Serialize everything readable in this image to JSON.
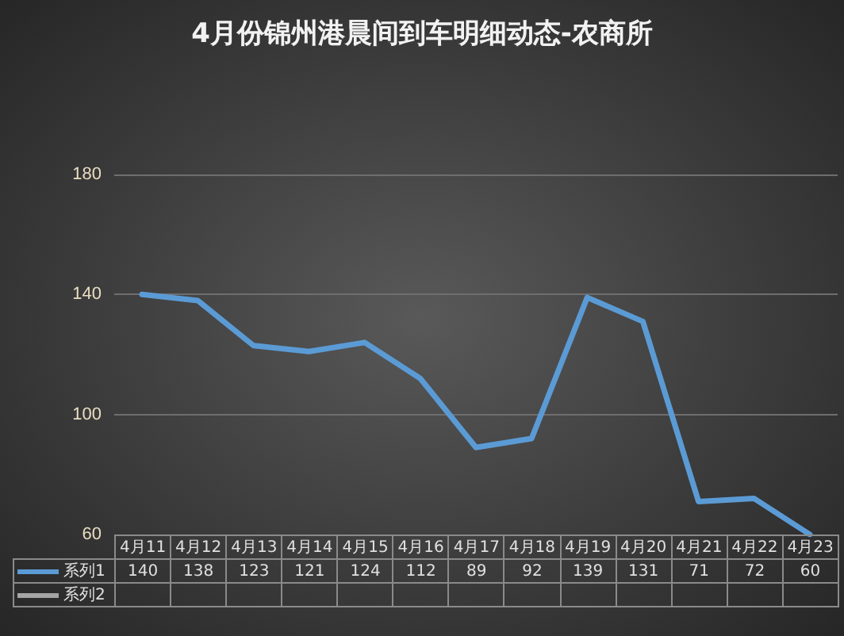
{
  "chart_data": {
    "type": "line",
    "title": "4月份锦州港晨间到车明细动态-农商所",
    "categories": [
      "4月11",
      "4月12",
      "4月13",
      "4月14",
      "4月15",
      "4月16",
      "4月17",
      "4月18",
      "4月19",
      "4月20",
      "4月21",
      "4月22",
      "4月23"
    ],
    "series": [
      {
        "name": "系列1",
        "color": "#5b9bd5",
        "values": [
          140,
          138,
          123,
          121,
          124,
          112,
          89,
          92,
          139,
          131,
          71,
          72,
          60
        ]
      },
      {
        "name": "系列2",
        "color": "#a5a5a5",
        "values": [
          null,
          null,
          null,
          null,
          null,
          null,
          null,
          null,
          null,
          null,
          null,
          null,
          null
        ]
      }
    ],
    "ylim": [
      60,
      180
    ],
    "yticks": [
      60,
      100,
      140,
      180
    ],
    "grid": "y",
    "legend": "bottom",
    "data_labels": true,
    "marker": "none",
    "line_style": "solid"
  }
}
